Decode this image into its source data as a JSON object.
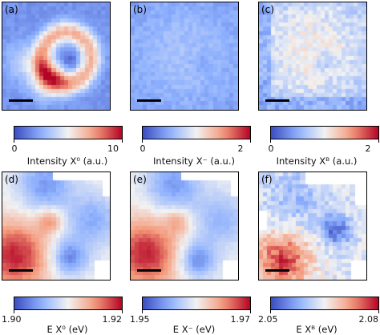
{
  "chart_data": [
    {
      "type": "heatmap",
      "panel_label": "(a)",
      "colormap": "coolwarm",
      "colorbar": {
        "label": "Intensity X⁰ (a.u.)",
        "ticks": [
          "0",
          "10"
        ],
        "range": [
          0,
          10
        ]
      }
    },
    {
      "type": "heatmap",
      "panel_label": "(b)",
      "colormap": "coolwarm",
      "colorbar": {
        "label": "Intensity X⁻ (a.u.)",
        "ticks": [
          "0",
          "2"
        ],
        "range": [
          0,
          2
        ]
      }
    },
    {
      "type": "heatmap",
      "panel_label": "(c)",
      "colormap": "coolwarm",
      "colorbar": {
        "label": "Intensity Xᴮ (a.u.)",
        "ticks": [
          "0",
          "2"
        ],
        "range": [
          0,
          2
        ]
      }
    },
    {
      "type": "heatmap",
      "panel_label": "(d)",
      "colormap": "coolwarm",
      "colorbar": {
        "label": "E X⁰ (eV)",
        "ticks": [
          "1.90",
          "1.92"
        ],
        "range": [
          1.9,
          1.92
        ]
      }
    },
    {
      "type": "heatmap",
      "panel_label": "(e)",
      "colormap": "coolwarm",
      "colorbar": {
        "label": "E X⁻ (eV)",
        "ticks": [
          "1.95",
          "1.97"
        ],
        "range": [
          1.95,
          1.97
        ]
      }
    },
    {
      "type": "heatmap",
      "panel_label": "(f)",
      "colormap": "coolwarm",
      "colorbar": {
        "label": "E Xᴮ (eV)",
        "ticks": [
          "2.05",
          "2.08"
        ],
        "range": [
          2.05,
          2.08
        ]
      }
    }
  ]
}
